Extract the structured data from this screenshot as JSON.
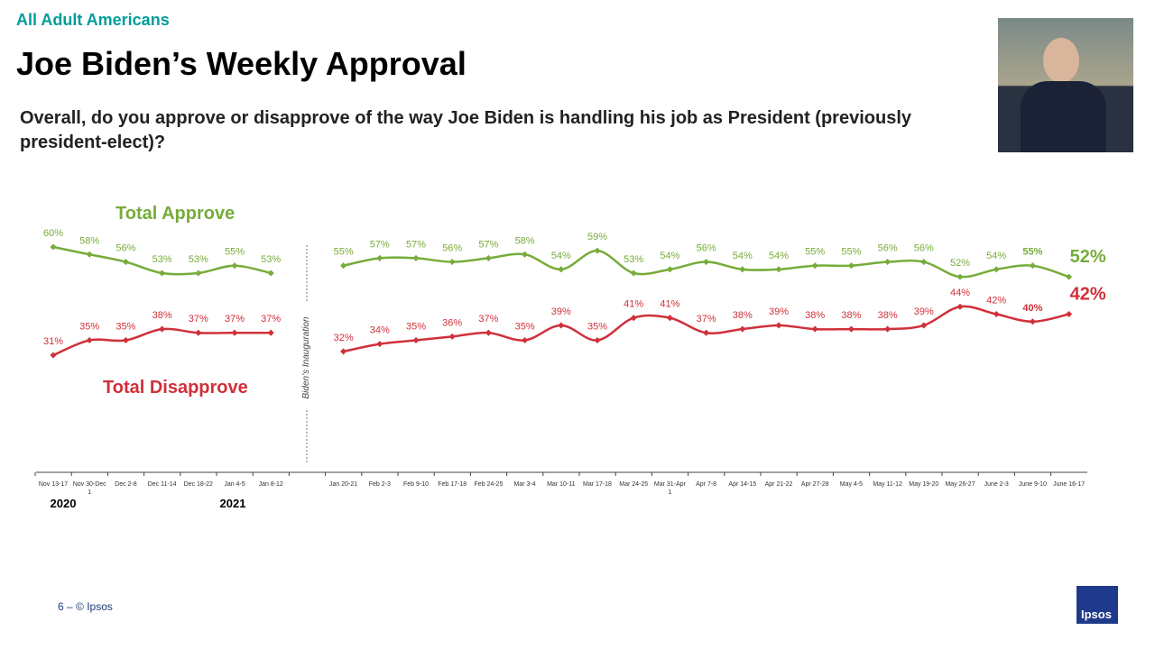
{
  "header": {
    "eyebrow": "All Adult Americans",
    "title": "Joe Biden’s Weekly Approval",
    "question": "Overall, do you approve or disapprove of the way Joe Biden is handling his job as President (previously president-elect)?"
  },
  "footer": {
    "page": "6 –  © Ipsos",
    "logo": "Ipsos"
  },
  "chart_data": {
    "type": "line",
    "categories": [
      "Nov 13-17",
      "Nov 30-Dec 1",
      "Dec 2-8",
      "Dec 11-14",
      "Dec 18-22",
      "Jan 4-5",
      "Jan 8-12",
      "",
      "Jan 20-21",
      "Feb 2-3",
      "Feb 9-10",
      "Feb 17-18",
      "Feb 24-25",
      "Mar 3-4",
      "Mar 10-11",
      "Mar 17-18",
      "Mar 24-25",
      "Mar 31-Apr 1",
      "Apr 7-8",
      "Apr 14-15",
      "Apr 21-22",
      "Apr 27-28",
      "May 4-5",
      "May 11-12",
      "May 19-20",
      "May 26-27",
      "June 2-3",
      "June 9-10",
      "June 16-17"
    ],
    "year_labels": [
      "2020",
      "2021"
    ],
    "annotation": "Biden’s Inauguration",
    "series": [
      {
        "name": "Total Approve",
        "color": "#77ac3a",
        "values": [
          60,
          58,
          56,
          53,
          53,
          55,
          53,
          null,
          55,
          57,
          57,
          56,
          57,
          58,
          54,
          59,
          53,
          54,
          56,
          54,
          54,
          55,
          55,
          56,
          56,
          52,
          54,
          55,
          52
        ]
      },
      {
        "name": "Total Disapprove",
        "color": "#d0303a",
        "values": [
          31,
          35,
          35,
          38,
          37,
          37,
          37,
          null,
          32,
          34,
          35,
          36,
          37,
          35,
          39,
          35,
          41,
          41,
          37,
          38,
          39,
          38,
          38,
          38,
          39,
          44,
          42,
          40,
          42
        ]
      }
    ],
    "unit": "%"
  }
}
